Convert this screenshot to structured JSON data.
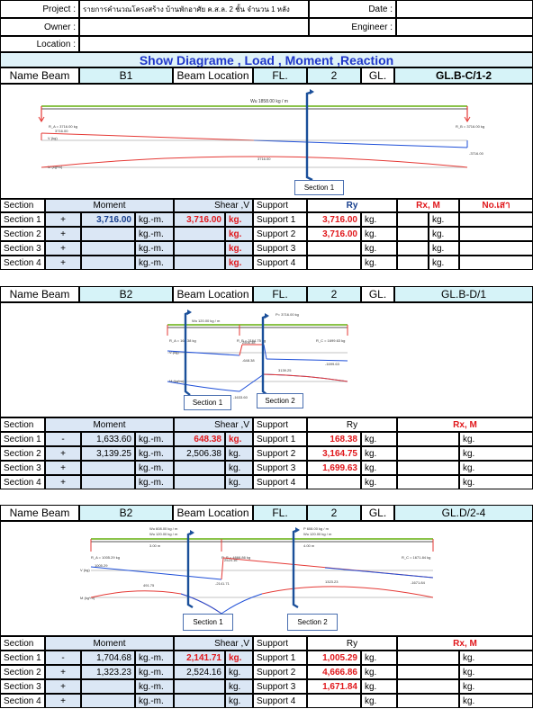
{
  "header": {
    "project_label": "Project :",
    "project_value": "รายการคำนวณโครงสร้าง บ้านพักอาศัย ค.ส.ล. 2 ชั้น จำนวน 1 หลัง",
    "owner_label": "Owner :",
    "location_label": "Location :",
    "date_label": "Date :",
    "engineer_label": "Engineer :"
  },
  "banner": "Show Diagrame , Load , Moment ,Reaction",
  "labels": {
    "name_beam": "Name Beam",
    "beam_location": "Beam Location",
    "fl": "FL.",
    "gl": "GL.",
    "section": "Section",
    "moment": "Moment",
    "shear": "Shear ,V",
    "support": "Support",
    "ry": "Ry",
    "rx_m": "Rx, M",
    "no": "No.เสา",
    "kgm": "kg.-m.",
    "kg": "kg.",
    "section_1": "Section 1",
    "section_2": "Section 2"
  },
  "beams": [
    {
      "name": "B1",
      "fl": "2",
      "gl": "GL.B-C/1-2",
      "diagram": {
        "load": "Wu 1858.00 kg / m",
        "ra": "R_A = 3716.00 kg",
        "rb": "R_B = 3716.00 kg",
        "v_left": "3716.00",
        "v_right": "-3716.00",
        "m_mid": "3716.00",
        "v_axis": "V (kg)",
        "m_axis": "M (kg*m)"
      },
      "rows": [
        {
          "section": "Section 1",
          "sign": "+",
          "moment": "3,716.00",
          "shear": "3,716.00",
          "support": "Support 1",
          "ry": "3,716.00"
        },
        {
          "section": "Section 2",
          "sign": "+",
          "moment": "",
          "shear": "",
          "support": "Support 2",
          "ry": "3,716.00"
        },
        {
          "section": "Section 3",
          "sign": "+",
          "moment": "",
          "shear": "",
          "support": "Support 3",
          "ry": ""
        },
        {
          "section": "Section 4",
          "sign": "+",
          "moment": "",
          "shear": "",
          "support": "Support 4",
          "ry": ""
        }
      ]
    },
    {
      "name": "B2",
      "fl": "2",
      "gl": "GL.B-D/1",
      "diagram": {
        "load_p": "P= 3716.00 kg",
        "load": "Wu 120.00 kg / m",
        "ra": "R_A = 168.38 kg",
        "rb": "R_B = 3164.75 kg",
        "rc": "R_C = 1699.63 kg",
        "m_label": "3139.25",
        "m_neg": "-1633.60",
        "v_a": "2506.38",
        "v_b": "-648.38",
        "v_c": "-1699.63",
        "v_axis": "V (kg)",
        "m_axis": "M (kg*m)"
      },
      "rows": [
        {
          "section": "Section 1",
          "sign": "-",
          "moment": "1,633.60",
          "shear": "648.38",
          "support": "Support 1",
          "ry": "168.38"
        },
        {
          "section": "Section 2",
          "sign": "+",
          "moment": "3,139.25",
          "shear": "2,506.38",
          "support": "Support 2",
          "ry": "3,164.75"
        },
        {
          "section": "Section 3",
          "sign": "+",
          "moment": "",
          "shear": "",
          "support": "Support 3",
          "ry": "1,699.63"
        },
        {
          "section": "Section 4",
          "sign": "+",
          "moment": "",
          "shear": "",
          "support": "Support 4",
          "ry": ""
        }
      ]
    },
    {
      "name": "B2",
      "fl": "2",
      "gl": "GL.D/2-4",
      "diagram": {
        "load_p1": "Wu 608.00 kg / m",
        "load_1": "Wu 120.00 kg / m",
        "load_p2": "P 608.00 kg / m",
        "load_2": "Wu 120.00 kg / m",
        "ra": "R_A = 1005.29 kg",
        "rb": "R_B = 4666.86 kg",
        "rc": "R_C = 1671.84 kg",
        "span_1": "3.00 m",
        "span_2": "4.00 m",
        "v_a": "1005.29",
        "v_b": "2524.16",
        "v_b2": "-2141.71",
        "v_c": "-1671.84",
        "m_1": "491.75",
        "m_2": "1323.23",
        "m_b": "-1704.68",
        "v_axis": "V (kg)",
        "m_axis": "M (kg*m)"
      },
      "rows": [
        {
          "section": "Section 1",
          "sign": "-",
          "moment": "1,704.68",
          "shear": "2,141.71",
          "support": "Support 1",
          "ry": "1,005.29"
        },
        {
          "section": "Section 2",
          "sign": "+",
          "moment": "1,323.23",
          "shear": "2,524.16",
          "support": "Support 2",
          "ry": "4,666.86"
        },
        {
          "section": "Section 3",
          "sign": "+",
          "moment": "",
          "shear": "",
          "support": "Support 3",
          "ry": "1,671.84"
        },
        {
          "section": "Section 4",
          "sign": "+",
          "moment": "",
          "shear": "",
          "support": "Support 4",
          "ry": ""
        }
      ]
    }
  ]
}
